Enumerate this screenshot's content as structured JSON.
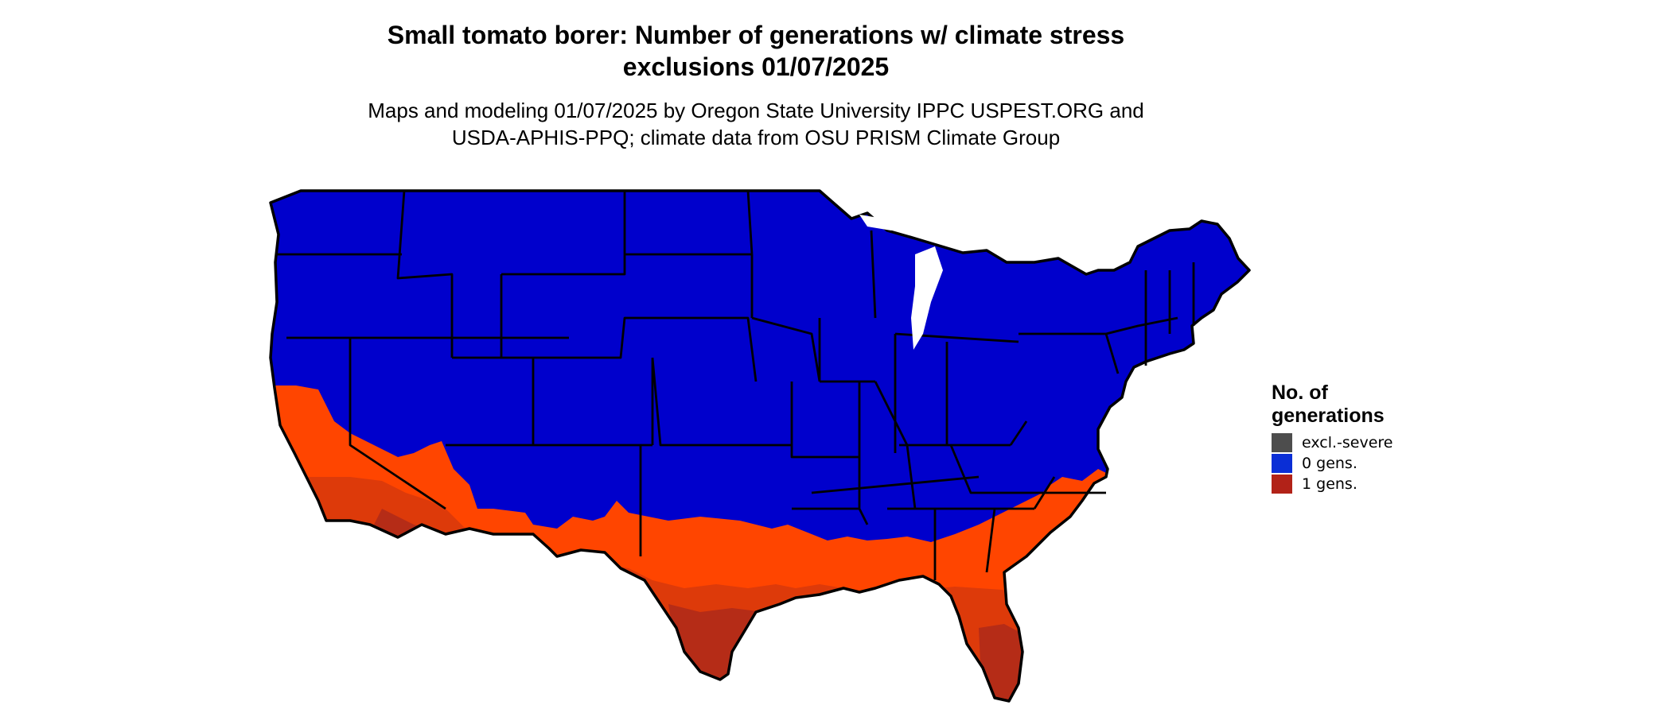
{
  "title_line1": "Small tomato borer: Number of generations w/ climate stress",
  "title_line2": "exclusions 01/07/2025",
  "subtitle_line1": "Maps and modeling 01/07/2025 by Oregon State University IPPC USPEST.ORG and",
  "subtitle_line2": "USDA-APHIS-PPQ; climate data from OSU PRISM Climate Group",
  "legend": {
    "title_line1": "No. of",
    "title_line2": "generations",
    "items": [
      {
        "label": "excl.-severe",
        "color": "#4d4d4d"
      },
      {
        "label": "0 gens.",
        "color": "#0a2ed6"
      },
      {
        "label": "1 gens.",
        "color": "#b22218"
      }
    ]
  },
  "map_colors": {
    "zero_gens": "#0000cc",
    "one_gen_light": "#ff4500",
    "one_gen_mid": "#dd3a0a",
    "one_gen_dark": "#b52c17",
    "border": "#000000"
  }
}
